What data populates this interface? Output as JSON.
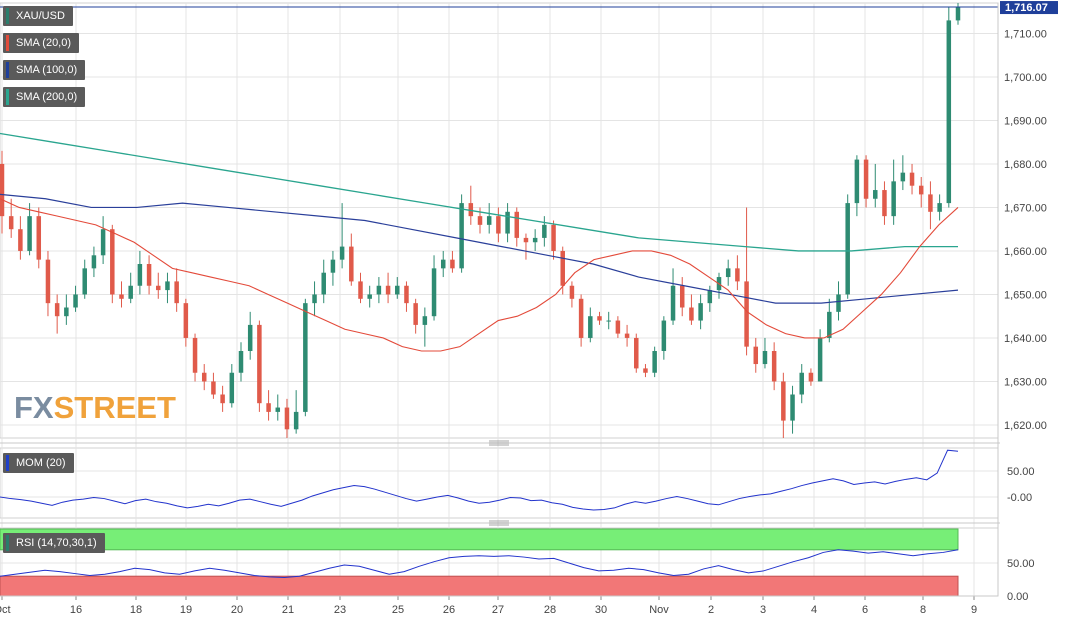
{
  "instrument": "XAU/USD",
  "current_price_label": "1,716.07",
  "logo": {
    "part1": "FX",
    "part2": "STREET"
  },
  "legends": {
    "xau": {
      "label": "XAU/USD",
      "color": "#2a7d6b"
    },
    "sma20": {
      "label": "SMA (20,0)",
      "color": "#e04b3a"
    },
    "sma100": {
      "label": "SMA (100,0)",
      "color": "#1f3f9a"
    },
    "sma200": {
      "label": "SMA (200,0)",
      "color": "#2aa58f"
    },
    "mom": {
      "label": "MOM (20)",
      "color": "#1f3fc8"
    },
    "rsi": {
      "label": "RSI (14,70,30,1)",
      "color": "#2a7d6b"
    }
  },
  "colors": {
    "up": "#2e8b72",
    "down": "#e05a4a",
    "sma20": "#e34a3a",
    "sma100": "#2a3f9a",
    "sma200": "#2aa58f",
    "mom": "#2233cc",
    "rsi": "#2233cc",
    "overbought": "#77ee77",
    "oversold": "#f27777",
    "grid": "#e4e4e4"
  },
  "chart_data": {
    "type": "candlestick",
    "x_tick_labels": [
      "Oct",
      "16",
      "18",
      "19",
      "20",
      "21",
      "23",
      "25",
      "26",
      "27",
      "28",
      "30",
      "Nov",
      "2",
      "3",
      "4",
      "6",
      "8",
      "9"
    ],
    "y_axis": {
      "ticks": [
        "1,620.00",
        "1,630.00",
        "1,640.00",
        "1,650.00",
        "1,660.00",
        "1,670.00",
        "1,680.00",
        "1,690.00",
        "1,700.00",
        "1,710.00"
      ],
      "range": [
        1617,
        1717
      ]
    },
    "price_candles": [
      [
        1680,
        1668,
        1683,
        1664
      ],
      [
        1668,
        1665,
        1672,
        1663
      ],
      [
        1665,
        1660,
        1668,
        1658
      ],
      [
        1660,
        1668,
        1671,
        1659
      ],
      [
        1668,
        1658,
        1670,
        1656
      ],
      [
        1658,
        1648,
        1660,
        1645
      ],
      [
        1648,
        1645,
        1650,
        1641
      ],
      [
        1645,
        1647,
        1650,
        1643
      ],
      [
        1647,
        1650,
        1652,
        1646
      ],
      [
        1650,
        1656,
        1658,
        1649
      ],
      [
        1656,
        1659,
        1661,
        1654
      ],
      [
        1659,
        1665,
        1668,
        1657
      ],
      [
        1665,
        1650,
        1666,
        1648
      ],
      [
        1650,
        1649,
        1653,
        1647
      ],
      [
        1649,
        1652,
        1655,
        1648
      ],
      [
        1652,
        1657,
        1660,
        1650
      ],
      [
        1657,
        1652,
        1659,
        1650
      ],
      [
        1652,
        1651,
        1655,
        1649
      ],
      [
        1651,
        1653,
        1655,
        1648
      ],
      [
        1653,
        1648,
        1656,
        1646
      ],
      [
        1648,
        1640,
        1649,
        1638
      ],
      [
        1640,
        1632,
        1641,
        1630
      ],
      [
        1632,
        1630,
        1634,
        1628
      ],
      [
        1630,
        1627,
        1632,
        1626
      ],
      [
        1627,
        1625,
        1629,
        1623
      ],
      [
        1625,
        1632,
        1634,
        1624
      ],
      [
        1632,
        1637,
        1639,
        1630
      ],
      [
        1637,
        1643,
        1646,
        1635
      ],
      [
        1643,
        1625,
        1644,
        1623
      ],
      [
        1625,
        1623,
        1628,
        1621
      ],
      [
        1623,
        1624,
        1627,
        1621
      ],
      [
        1624,
        1619,
        1626,
        1617
      ],
      [
        1619,
        1623,
        1628,
        1618
      ],
      [
        1623,
        1648,
        1649,
        1622
      ],
      [
        1648,
        1650,
        1653,
        1645
      ],
      [
        1650,
        1655,
        1658,
        1648
      ],
      [
        1655,
        1658,
        1660,
        1652
      ],
      [
        1658,
        1661,
        1671,
        1656
      ],
      [
        1661,
        1653,
        1664,
        1652
      ],
      [
        1653,
        1649,
        1655,
        1648
      ],
      [
        1649,
        1650,
        1652,
        1647
      ],
      [
        1650,
        1652,
        1654,
        1648
      ],
      [
        1652,
        1650,
        1655,
        1648
      ],
      [
        1650,
        1652,
        1654,
        1649
      ],
      [
        1652,
        1648,
        1653,
        1646
      ],
      [
        1648,
        1643,
        1649,
        1641
      ],
      [
        1643,
        1645,
        1647,
        1638
      ],
      [
        1645,
        1656,
        1659,
        1644
      ],
      [
        1656,
        1658,
        1660,
        1654
      ],
      [
        1658,
        1656,
        1660,
        1655
      ],
      [
        1656,
        1671,
        1673,
        1655
      ],
      [
        1671,
        1668,
        1675,
        1666
      ],
      [
        1668,
        1666,
        1670,
        1664
      ],
      [
        1666,
        1668,
        1671,
        1664
      ],
      [
        1668,
        1664,
        1670,
        1662
      ],
      [
        1664,
        1669,
        1671,
        1662
      ],
      [
        1669,
        1663,
        1670,
        1661
      ],
      [
        1663,
        1662,
        1664,
        1658
      ],
      [
        1662,
        1663,
        1665,
        1660
      ],
      [
        1663,
        1666,
        1668,
        1661
      ],
      [
        1666,
        1660,
        1667,
        1658
      ],
      [
        1660,
        1652,
        1661,
        1650
      ],
      [
        1652,
        1649,
        1653,
        1647
      ],
      [
        1649,
        1640,
        1650,
        1638
      ],
      [
        1640,
        1645,
        1647,
        1639
      ],
      [
        1645,
        1644,
        1646,
        1643
      ],
      [
        1644,
        1644,
        1646,
        1642
      ],
      [
        1644,
        1641,
        1645,
        1640
      ],
      [
        1641,
        1640,
        1643,
        1638
      ],
      [
        1640,
        1633,
        1641,
        1632
      ],
      [
        1633,
        1632,
        1634,
        1631
      ],
      [
        1632,
        1637,
        1638,
        1631
      ],
      [
        1637,
        1644,
        1645,
        1635
      ],
      [
        1644,
        1652,
        1656,
        1643
      ],
      [
        1652,
        1647,
        1654,
        1645
      ],
      [
        1647,
        1644,
        1650,
        1643
      ],
      [
        1644,
        1648,
        1650,
        1642
      ],
      [
        1648,
        1651,
        1652,
        1646
      ],
      [
        1651,
        1654,
        1655,
        1649
      ],
      [
        1654,
        1656,
        1658,
        1652
      ],
      [
        1656,
        1653,
        1659,
        1651
      ],
      [
        1653,
        1638,
        1670,
        1636
      ],
      [
        1638,
        1634,
        1640,
        1632
      ],
      [
        1634,
        1637,
        1640,
        1633
      ],
      [
        1637,
        1630,
        1639,
        1628
      ],
      [
        1630,
        1621,
        1632,
        1617
      ],
      [
        1621,
        1627,
        1629,
        1618
      ],
      [
        1627,
        1632,
        1634,
        1625
      ],
      [
        1632,
        1630,
        1633,
        1629
      ],
      [
        1630,
        1640,
        1642,
        1630
      ],
      [
        1640,
        1646,
        1649,
        1639
      ],
      [
        1646,
        1650,
        1653,
        1644
      ],
      [
        1650,
        1671,
        1673,
        1649
      ],
      [
        1671,
        1681,
        1682,
        1668
      ],
      [
        1681,
        1672,
        1682,
        1670
      ],
      [
        1672,
        1674,
        1680,
        1670
      ],
      [
        1674,
        1668,
        1676,
        1666
      ],
      [
        1668,
        1676,
        1681,
        1666
      ],
      [
        1676,
        1678,
        1682,
        1674
      ],
      [
        1678,
        1675,
        1680,
        1673
      ],
      [
        1675,
        1673,
        1677,
        1670
      ],
      [
        1673,
        1669,
        1676,
        1665
      ],
      [
        1669,
        1671,
        1673,
        1667
      ],
      [
        1671,
        1713,
        1716,
        1670
      ],
      [
        1713,
        1716.07,
        1717,
        1712
      ]
    ],
    "sma20": [
      1672,
      1670,
      1669,
      1668,
      1667,
      1666,
      1664,
      1662,
      1659,
      1656,
      1655,
      1654,
      1653,
      1652,
      1650,
      1648,
      1646,
      1644,
      1642,
      1641,
      1640,
      1638,
      1637,
      1637,
      1638,
      1641,
      1644,
      1645,
      1647,
      1650,
      1655,
      1658,
      1659,
      1660,
      1660,
      1659,
      1657,
      1654,
      1651,
      1646,
      1643,
      1641,
      1640,
      1640,
      1642,
      1646,
      1650,
      1655,
      1661,
      1666,
      1670
    ],
    "sma100": [
      1673,
      1672,
      1670,
      1670,
      1671,
      1670,
      1669,
      1668,
      1667,
      1665,
      1663,
      1661,
      1659,
      1657,
      1654,
      1652,
      1650,
      1648,
      1648,
      1649,
      1650,
      1651
    ],
    "sma200": [
      1687,
      1685,
      1683,
      1681,
      1679,
      1677,
      1675,
      1673,
      1671,
      1669,
      1667,
      1665,
      1663,
      1662,
      1661,
      1660,
      1660,
      1661,
      1661
    ],
    "mom_ticks": [
      "50.00",
      "-0.00"
    ],
    "mom": [
      0,
      -3,
      -5,
      -8,
      -12,
      -16,
      -10,
      -6,
      -4,
      -1,
      -3,
      -8,
      -13,
      -7,
      -4,
      -9,
      -12,
      -17,
      -21,
      -18,
      -14,
      -17,
      -12,
      -6,
      -4,
      -9,
      -14,
      -18,
      -12,
      -6,
      2,
      8,
      14,
      18,
      22,
      20,
      15,
      9,
      3,
      -3,
      -8,
      -4,
      0,
      3,
      -2,
      -8,
      -12,
      -10,
      -6,
      -1,
      -2,
      -7,
      -6,
      -11,
      -14,
      -20,
      -23,
      -25,
      -24,
      -21,
      -14,
      -9,
      -12,
      -8,
      -3,
      1,
      -3,
      -8,
      -13,
      -15,
      -9,
      -3,
      1,
      4,
      6,
      11,
      16,
      22,
      27,
      31,
      35,
      31,
      24,
      27,
      29,
      25,
      30,
      34,
      37,
      33,
      46,
      90,
      88
    ],
    "rsi_ticks": [
      "50.00",
      "0.00"
    ],
    "rsi_levels": [
      70,
      30
    ],
    "rsi": [
      30,
      33,
      36,
      39,
      37,
      34,
      31,
      33,
      37,
      42,
      40,
      35,
      33,
      38,
      42,
      39,
      35,
      31,
      29,
      28,
      30,
      36,
      42,
      47,
      45,
      39,
      33,
      37,
      45,
      52,
      58,
      60,
      61,
      60,
      61,
      59,
      56,
      57,
      50,
      43,
      38,
      39,
      42,
      40,
      35,
      31,
      33,
      41,
      46,
      40,
      35,
      38,
      45,
      52,
      58,
      66,
      70,
      68,
      65,
      67,
      64,
      61,
      64,
      66,
      70
    ],
    "x_unit_note": ""
  }
}
